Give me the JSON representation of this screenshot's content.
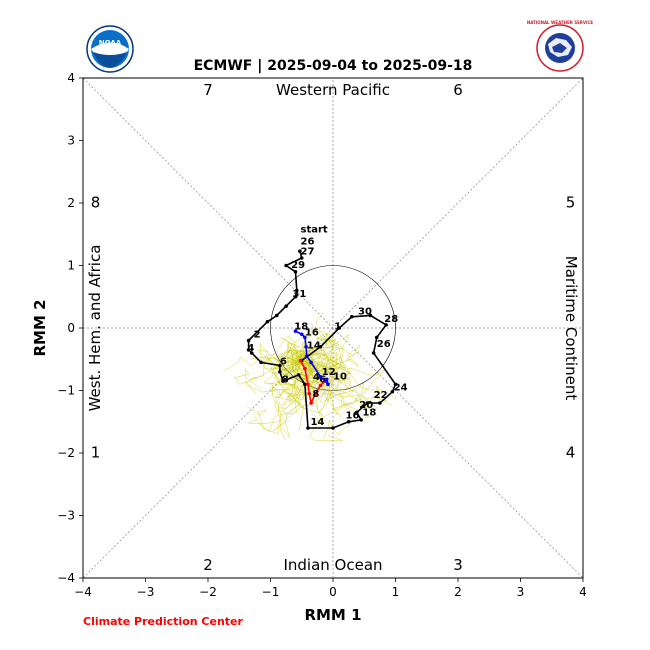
{
  "title": "ECMWF | 2025-09-04 to 2025-09-18",
  "footer": "Climate Prediction Center",
  "logos": {
    "left": "NOAA",
    "right": "NATIONAL WEATHER SERVICE"
  },
  "colors": {
    "observed": "#000000",
    "week1": "#ff0000",
    "week2": "#0000ff",
    "ensemble": "#c8c800",
    "footer": "#ff0000"
  },
  "chart_data": {
    "type": "line",
    "xlabel": "RMM 1",
    "ylabel": "RMM 2",
    "xlim": [
      -4,
      4
    ],
    "ylim": [
      -4,
      4
    ],
    "x_ticks": [
      "−4",
      "−3",
      "−2",
      "−1",
      "0",
      "1",
      "2",
      "3",
      "4"
    ],
    "y_ticks": [
      "−4",
      "−3",
      "−2",
      "−1",
      "0",
      "1",
      "2",
      "3",
      "4"
    ],
    "regions": {
      "top": "Western Pacific",
      "bottom": "Indian Ocean",
      "left": "West. Hem. and Africa",
      "right": "Maritime Continent"
    },
    "phases": [
      {
        "label": "1",
        "x": -3.8,
        "y": -2.0
      },
      {
        "label": "2",
        "x": -2.0,
        "y": -3.8
      },
      {
        "label": "3",
        "x": 2.0,
        "y": -3.8
      },
      {
        "label": "4",
        "x": 3.8,
        "y": -2.0
      },
      {
        "label": "5",
        "x": 3.8,
        "y": 2.0
      },
      {
        "label": "6",
        "x": 2.0,
        "y": 3.8
      },
      {
        "label": "7",
        "x": -2.0,
        "y": 3.8
      },
      {
        "label": "8",
        "x": -3.8,
        "y": 2.0
      }
    ],
    "observed": {
      "points": [
        [
          -0.53,
          1.23
        ],
        [
          -0.5,
          1.12
        ],
        [
          -0.75,
          1.0
        ],
        [
          -0.6,
          0.9
        ],
        [
          -0.58,
          0.6
        ],
        [
          -0.6,
          0.5
        ],
        [
          -0.75,
          0.35
        ],
        [
          -0.9,
          0.2
        ],
        [
          -1.05,
          0.1
        ],
        [
          -1.35,
          -0.2
        ],
        [
          -1.35,
          -0.35
        ],
        [
          -1.3,
          -0.4
        ],
        [
          -1.15,
          -0.55
        ],
        [
          -0.85,
          -0.6
        ],
        [
          -0.85,
          -0.7
        ],
        [
          -0.8,
          -0.85
        ],
        [
          -0.55,
          -0.75
        ],
        [
          -0.45,
          -0.9
        ],
        [
          -0.4,
          -1.6
        ],
        [
          0.0,
          -1.6
        ],
        [
          0.25,
          -1.5
        ],
        [
          0.45,
          -1.47
        ],
        [
          0.38,
          -1.35
        ],
        [
          0.55,
          -1.2
        ],
        [
          0.75,
          -1.2
        ],
        [
          0.95,
          -1.02
        ],
        [
          1.0,
          -0.9
        ],
        [
          0.65,
          -0.4
        ],
        [
          0.7,
          -0.15
        ],
        [
          0.85,
          0.05
        ],
        [
          0.6,
          0.2
        ],
        [
          0.3,
          0.18
        ],
        [
          0.1,
          0.0
        ],
        [
          -0.2,
          -0.3
        ],
        [
          -0.5,
          -0.52
        ]
      ],
      "labels": [
        {
          "text": "start",
          "x": -0.52,
          "y": 1.53
        },
        {
          "text": "26",
          "x": -0.52,
          "y": 1.34
        },
        {
          "text": "27",
          "x": -0.52,
          "y": 1.18
        },
        {
          "text": "29",
          "x": -0.67,
          "y": 0.96
        },
        {
          "text": "31",
          "x": -0.65,
          "y": 0.5
        },
        {
          "text": "30",
          "x": 0.4,
          "y": 0.22
        },
        {
          "text": "28",
          "x": 0.82,
          "y": 0.1
        },
        {
          "text": "26",
          "x": 0.7,
          "y": -0.3
        },
        {
          "text": "24",
          "x": 0.97,
          "y": -1.0
        },
        {
          "text": "22",
          "x": 0.65,
          "y": -1.12
        },
        {
          "text": "20",
          "x": 0.42,
          "y": -1.28
        },
        {
          "text": "18",
          "x": 0.47,
          "y": -1.4
        },
        {
          "text": "16",
          "x": 0.2,
          "y": -1.45
        },
        {
          "text": "14",
          "x": -0.36,
          "y": -1.55
        },
        {
          "text": "8",
          "x": -0.82,
          "y": -0.87
        },
        {
          "text": "6",
          "x": -0.85,
          "y": -0.58
        },
        {
          "text": "4",
          "x": -1.37,
          "y": -0.37
        },
        {
          "text": "2",
          "x": -1.27,
          "y": -0.15
        },
        {
          "text": "1",
          "x": 0.02,
          "y": -0.02
        }
      ]
    },
    "week1": {
      "points": [
        [
          -0.52,
          -0.52
        ],
        [
          -0.45,
          -0.65
        ],
        [
          -0.4,
          -0.9
        ],
        [
          -0.38,
          -1.05
        ],
        [
          -0.35,
          -1.2
        ],
        [
          -0.28,
          -1.05
        ],
        [
          -0.2,
          -0.92
        ],
        [
          -0.1,
          -0.82
        ]
      ],
      "labels": [
        {
          "text": "4",
          "x": -0.32,
          "y": -0.83
        },
        {
          "text": "6",
          "x": -0.22,
          "y": -0.87
        },
        {
          "text": "8",
          "x": -0.33,
          "y": -1.1
        }
      ]
    },
    "week2": {
      "points": [
        [
          -0.1,
          -0.82
        ],
        [
          -0.08,
          -0.9
        ],
        [
          -0.2,
          -0.78
        ],
        [
          -0.35,
          -0.55
        ],
        [
          -0.42,
          -0.45
        ],
        [
          -0.43,
          -0.3
        ],
        [
          -0.45,
          -0.15
        ],
        [
          -0.5,
          -0.1
        ],
        [
          -0.6,
          -0.05
        ]
      ],
      "labels": [
        {
          "text": "10",
          "x": 0.0,
          "y": -0.82
        },
        {
          "text": "12",
          "x": -0.18,
          "y": -0.75
        },
        {
          "text": "14",
          "x": -0.42,
          "y": -0.33
        },
        {
          "text": "16",
          "x": -0.45,
          "y": -0.12
        },
        {
          "text": "18",
          "x": -0.62,
          "y": -0.02
        }
      ]
    }
  }
}
